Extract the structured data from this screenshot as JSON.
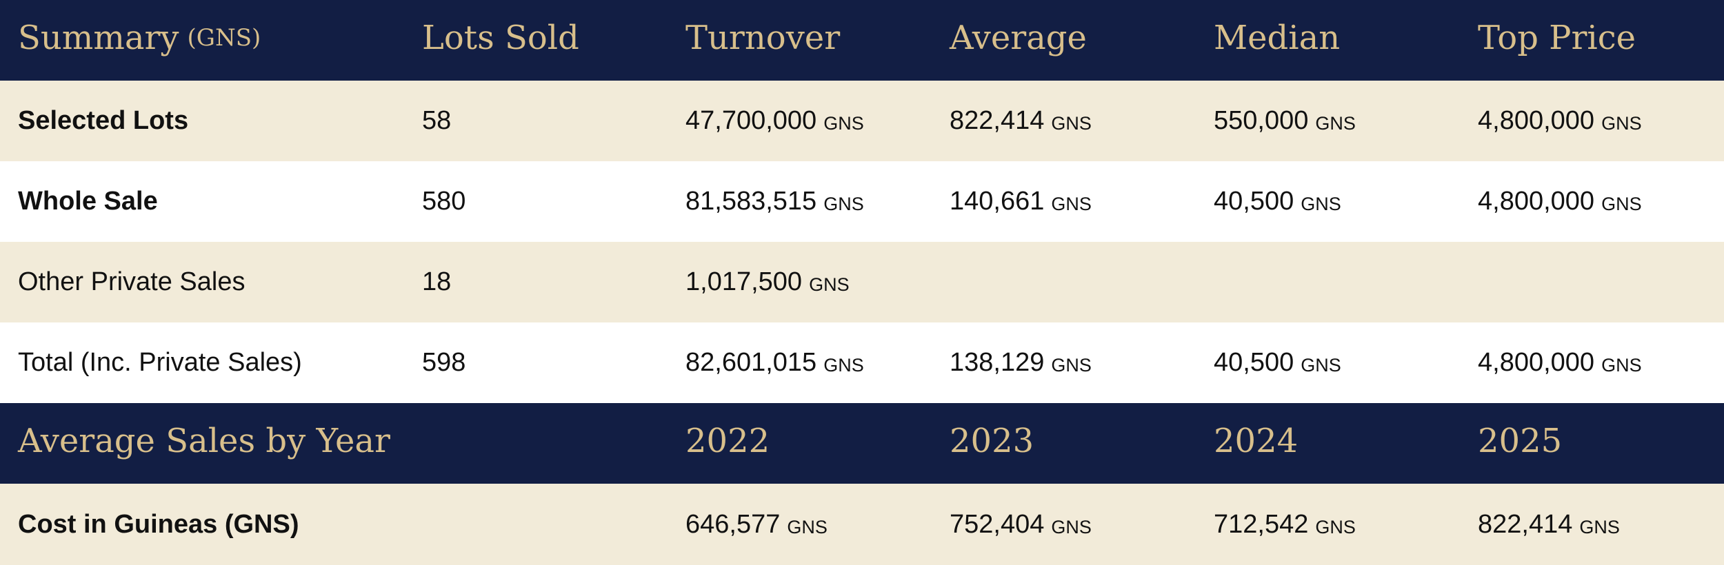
{
  "summary_header": {
    "title": "Summary",
    "title_unit": "(GNS)",
    "columns": [
      "Lots Sold",
      "Turnover",
      "Average",
      "Median",
      "Top Price"
    ]
  },
  "unit": "GNS",
  "summary_rows": [
    {
      "label": "Selected Lots",
      "lots": "58",
      "turnover": "47,700,000",
      "average": "822,414",
      "median": "550,000",
      "top": "4,800,000"
    },
    {
      "label": "Whole Sale",
      "lots": "580",
      "turnover": "81,583,515",
      "average": "140,661",
      "median": "40,500",
      "top": "4,800,000"
    },
    {
      "label": "Other Private Sales",
      "lots": "18",
      "turnover": "1,017,500"
    },
    {
      "label": "Total (Inc. Private Sales)",
      "lots": "598",
      "turnover": "82,601,015",
      "average": "138,129",
      "median": "40,500",
      "top": "4,800,000"
    }
  ],
  "yearly_header": {
    "title": "Average Sales by Year",
    "years": [
      "2022",
      "2023",
      "2024",
      "2025"
    ]
  },
  "yearly_row": {
    "label": "Cost in Guineas (GNS)",
    "values": [
      "646,577",
      "752,404",
      "712,542",
      "822,414"
    ]
  },
  "colors": {
    "navy": "#121e44",
    "gold": "#d8bf8b",
    "cream": "#f2ebd9"
  }
}
